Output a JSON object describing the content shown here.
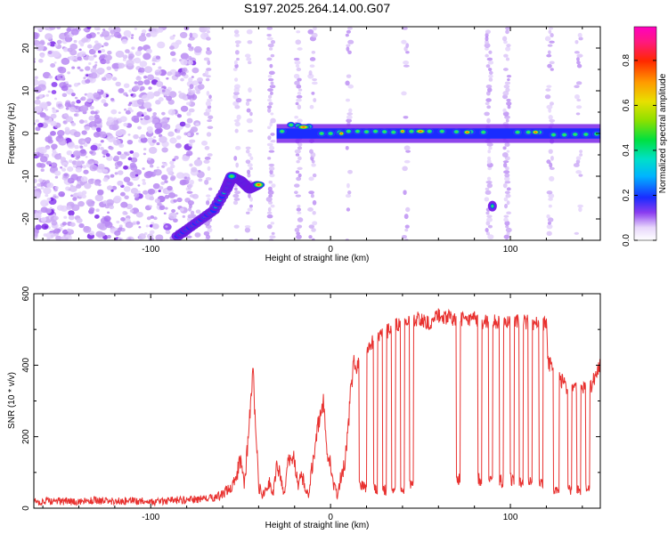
{
  "title": "S197.2025.264.14.00.G07",
  "chart_data": [
    {
      "type": "heatmap",
      "xlabel": "Height of straight line (km)",
      "ylabel": "Frequency (Hz)",
      "xlim": [
        -165,
        150
      ],
      "ylim": [
        -25,
        25
      ],
      "xticks": [
        -100,
        0,
        100
      ],
      "xtick_labels": [
        "-100",
        "0",
        "100"
      ],
      "yticks": [
        -20,
        -10,
        0,
        10,
        20
      ],
      "ytick_labels": [
        "-20",
        "-10",
        "0",
        "10",
        "20"
      ],
      "colorbar": {
        "label": "Normalized spectral amplitude",
        "range": [
          0,
          0.95
        ],
        "ticks": [
          0.0,
          0.2,
          0.4,
          0.6,
          0.8
        ],
        "tick_labels": [
          "0.0",
          "0.2",
          "0.4",
          "0.6",
          "0.8"
        ]
      },
      "features": [
        {
          "name": "ascending-trace",
          "points": [
            [
              -85,
              -24
            ],
            [
              -75,
              -21
            ],
            [
              -65,
              -18
            ],
            [
              -58,
              -13
            ],
            [
              -55,
              -10
            ],
            [
              -50,
              -11
            ],
            [
              -45,
              -13
            ],
            [
              -40,
              -12
            ]
          ],
          "amplitude": 0.45
        },
        {
          "name": "carrier-line",
          "x_range": [
            -30,
            150
          ],
          "frequency": 0.5,
          "amplitude": 0.55
        },
        {
          "name": "isolated-blob",
          "x": 90,
          "frequency": -17,
          "amplitude": 0.35
        }
      ]
    },
    {
      "type": "line",
      "xlabel": "Height of straight line (km)",
      "ylabel": "SNR (10 * v/v)",
      "xlim": [
        -165,
        150
      ],
      "ylim": [
        0,
        600
      ],
      "xticks": [
        -100,
        0,
        100
      ],
      "xtick_labels": [
        "-100",
        "0",
        "100"
      ],
      "yticks": [
        0,
        200,
        400,
        600
      ],
      "ytick_labels": [
        "0",
        "200",
        "400",
        "600"
      ],
      "color": "#e8312f",
      "x": [
        -165,
        -150,
        -140,
        -130,
        -120,
        -110,
        -100,
        -90,
        -85,
        -80,
        -75,
        -70,
        -65,
        -60,
        -55,
        -52,
        -50,
        -48,
        -46,
        -44,
        -43,
        -42,
        -41,
        -40,
        -38,
        -36,
        -34,
        -32,
        -30,
        -28,
        -26,
        -24,
        -22,
        -20,
        -18,
        -16,
        -14,
        -12,
        -10,
        -8,
        -6,
        -4,
        -2,
        0,
        2,
        4,
        6,
        8,
        10,
        11,
        12,
        13,
        14,
        15,
        16,
        17,
        18,
        20,
        25,
        30,
        35,
        40,
        45,
        50,
        55,
        60,
        65,
        70,
        75,
        80,
        85,
        90,
        95,
        100,
        105,
        110,
        115,
        120,
        121,
        122,
        125,
        130,
        135,
        140,
        145,
        150
      ],
      "values": [
        18,
        20,
        17,
        22,
        19,
        21,
        18,
        20,
        23,
        22,
        25,
        24,
        30,
        38,
        60,
        95,
        145,
        60,
        180,
        330,
        400,
        250,
        160,
        60,
        40,
        55,
        70,
        40,
        120,
        90,
        35,
        110,
        160,
        125,
        60,
        95,
        55,
        40,
        130,
        200,
        260,
        300,
        150,
        120,
        60,
        35,
        100,
        130,
        230,
        330,
        360,
        420,
        380,
        400,
        440,
        410,
        430,
        450,
        470,
        490,
        505,
        520,
        525,
        530,
        520,
        540,
        535,
        530,
        525,
        530,
        520,
        525,
        515,
        520,
        525,
        520,
        515,
        520,
        410,
        400,
        380,
        345,
        330,
        340,
        345,
        400
      ],
      "dropouts": [
        [
          16,
          20,
          60
        ],
        [
          24,
          26,
          55
        ],
        [
          29,
          31,
          50
        ],
        [
          34,
          36,
          55
        ],
        [
          39,
          41,
          55
        ],
        [
          44,
          46,
          60
        ],
        [
          70,
          72,
          80
        ],
        [
          82,
          84,
          80
        ],
        [
          88,
          90,
          75
        ],
        [
          94,
          96,
          75
        ],
        [
          100,
          102,
          80
        ],
        [
          105,
          107,
          75
        ],
        [
          110,
          112,
          75
        ],
        [
          116,
          118,
          70
        ],
        [
          124,
          127,
          55
        ],
        [
          132,
          134,
          50
        ],
        [
          137,
          139,
          50
        ],
        [
          142,
          144,
          55
        ]
      ]
    }
  ]
}
